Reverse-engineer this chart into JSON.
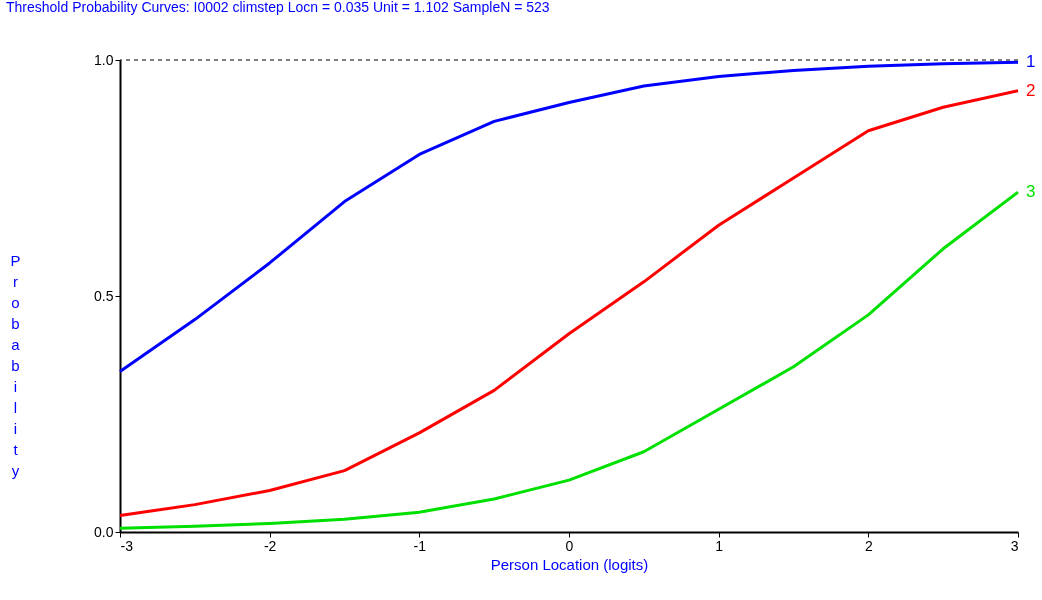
{
  "chart_data": {
    "type": "line",
    "title": "Threshold Probability Curves:  I0002  climstep      Locn = 0.035      Unit = 1.102      SampleN = 523",
    "xlabel": "Person Location (logits)",
    "ylabel": "Probability",
    "x": [
      -3,
      -2.5,
      -2,
      -1.5,
      -1,
      -0.5,
      0,
      0.5,
      1,
      1.5,
      2,
      2.5,
      3
    ],
    "series": [
      {
        "name": "1",
        "color": "#0000ff",
        "values": [
          0.34,
          0.45,
          0.57,
          0.7,
          0.8,
          0.87,
          0.91,
          0.945,
          0.965,
          0.978,
          0.987,
          0.992,
          0.995
        ]
      },
      {
        "name": "2",
        "color": "#ff0000",
        "values": [
          0.035,
          0.058,
          0.088,
          0.13,
          0.21,
          0.3,
          0.42,
          0.53,
          0.65,
          0.75,
          0.85,
          0.9,
          0.935
        ]
      },
      {
        "name": "3",
        "color": "#00e000",
        "values": [
          0.008,
          0.012,
          0.018,
          0.027,
          0.042,
          0.07,
          0.11,
          0.17,
          0.26,
          0.35,
          0.46,
          0.6,
          0.72
        ]
      }
    ],
    "xlim": [
      -3,
      3
    ],
    "xticks": [
      -3,
      -2,
      -1,
      0,
      1,
      2,
      3
    ],
    "ylim": [
      0,
      1
    ],
    "yticks": [
      {
        "value": 0,
        "label": "0.0"
      },
      {
        "value": 0.5,
        "label": "0.5"
      },
      {
        "value": 1,
        "label": "1.0"
      }
    ],
    "ref_lines": [
      {
        "axis": "y",
        "value": 1,
        "label": null,
        "color": "#000000",
        "line_style": "dashed"
      }
    ],
    "grid": false,
    "legend": false,
    "marker": "none",
    "line_style": "solid"
  }
}
